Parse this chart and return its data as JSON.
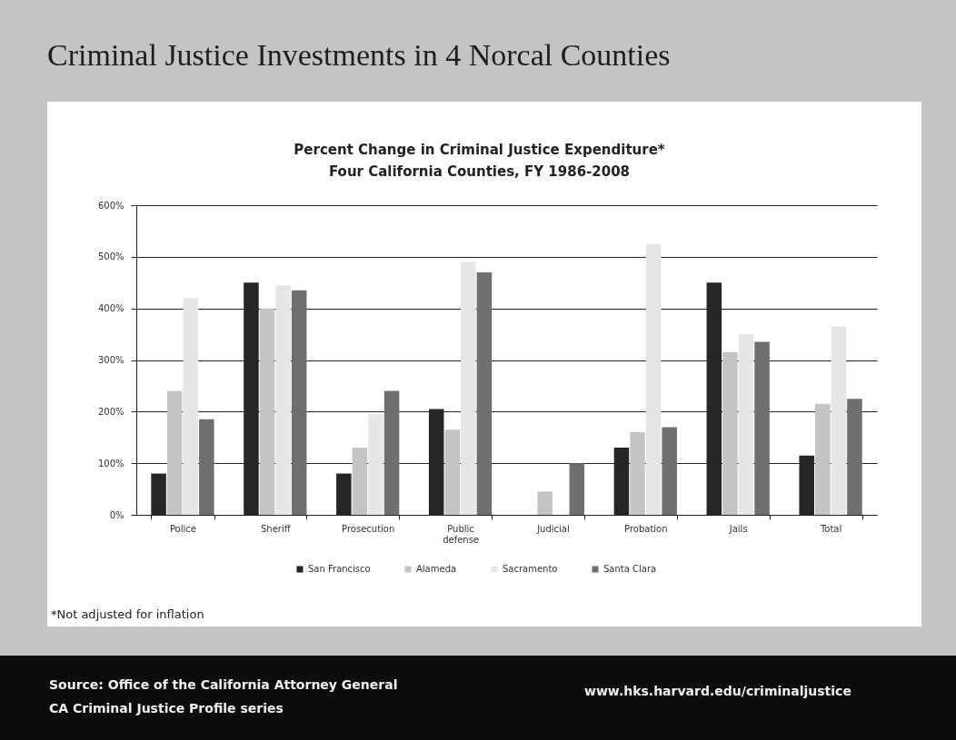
{
  "chart_data": {
    "type": "bar",
    "title": "Criminal Justice Investments in 4 Norcal Counties",
    "subtitle": "Percent Change in Criminal Justice Expenditure*\nFour California Counties, FY 1986-2008",
    "categories": [
      "Police",
      "Sheriff",
      "Prosecution",
      "Public defense",
      "Judicial",
      "Probation",
      "Jails",
      "Total"
    ],
    "series": [
      {
        "name": "San Francisco",
        "color": "#262626",
        "values": [
          80,
          450,
          80,
          205,
          null,
          130,
          450,
          115
        ]
      },
      {
        "name": "Alameda",
        "color": "#c4c4c4",
        "values": [
          240,
          400,
          130,
          165,
          45,
          160,
          315,
          215
        ]
      },
      {
        "name": "Sacramento",
        "color": "#e6e6e6",
        "values": [
          420,
          445,
          195,
          490,
          null,
          525,
          350,
          365
        ]
      },
      {
        "name": "Santa Clara",
        "color": "#6f6f6f",
        "values": [
          185,
          435,
          240,
          470,
          100,
          170,
          335,
          225
        ]
      }
    ],
    "ylim": [
      0,
      600
    ],
    "yticks": [
      {
        "value": 0,
        "label": "0%"
      },
      {
        "value": 100,
        "label": "100%"
      },
      {
        "value": 200,
        "label": "200%"
      },
      {
        "value": 300,
        "label": "300%"
      },
      {
        "value": 400,
        "label": "400%"
      },
      {
        "value": 500,
        "label": "500%"
      },
      {
        "value": 600,
        "label": "600%"
      }
    ],
    "grid": "y",
    "legend": "bottom",
    "annotations": [
      "*Not adjusted for inflation",
      "Source:  Office of the California Attorney General",
      "CA Criminal Justice Profile series",
      "www.hks.harvard.edu/criminaljustice"
    ]
  }
}
